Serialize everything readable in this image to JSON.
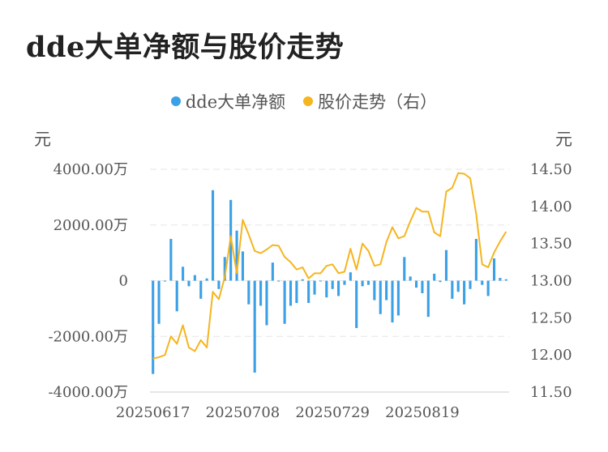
{
  "title": "dde大单净额与股价走势",
  "legend": {
    "bar_label": "dde大单净额",
    "line_label": "股价走势（右）"
  },
  "units": {
    "left": "元",
    "right": "元"
  },
  "colors": {
    "bar": "#3ba0e6",
    "line": "#f5b51e",
    "grid": "#e6e6e6",
    "axis": "#cccccc"
  },
  "chart_data": {
    "type": "bar+line",
    "title": "dde大单净额与股价走势",
    "grid": true,
    "legend_position": "top",
    "x_tick_labels": [
      "20250617",
      "20250708",
      "20250729",
      "20250819"
    ],
    "left_axis": {
      "ylim": [
        -4000,
        4000
      ],
      "tick_labels": [
        "4000.00万",
        "2000.00万",
        "0",
        "-2000.00万",
        "-4000.00万"
      ],
      "ticks": [
        4000,
        2000,
        0,
        -2000,
        -4000
      ]
    },
    "right_axis": {
      "ylim": [
        11.5,
        14.5
      ],
      "tick_labels": [
        "14.50",
        "14.00",
        "13.50",
        "13.00",
        "12.50",
        "12.00",
        "11.50"
      ],
      "ticks": [
        14.5,
        14.0,
        13.5,
        13.0,
        12.5,
        12.0,
        11.5
      ]
    },
    "series": [
      {
        "name": "dde大单净额",
        "type": "bar",
        "axis": "left",
        "values": [
          -3350,
          -1550,
          0,
          1500,
          -1100,
          500,
          -200,
          200,
          -650,
          80,
          3250,
          -300,
          850,
          2900,
          1800,
          1050,
          -850,
          -3300,
          -900,
          -1600,
          650,
          -30,
          -1550,
          -900,
          -800,
          50,
          -800,
          -500,
          0,
          -600,
          -300,
          -550,
          -150,
          300,
          -1700,
          -200,
          -150,
          -700,
          -1200,
          -700,
          -1500,
          -1250,
          850,
          150,
          -250,
          -450,
          -1300,
          250,
          -50,
          1100,
          -650,
          -400,
          -850,
          -300,
          1500,
          -150,
          -550,
          800,
          100,
          50
        ]
      },
      {
        "name": "股价走势（右）",
        "type": "line",
        "axis": "right",
        "values": [
          11.95,
          11.97,
          12.0,
          12.25,
          12.15,
          12.4,
          12.1,
          12.05,
          12.2,
          12.1,
          12.85,
          12.75,
          13.05,
          13.6,
          13.1,
          13.82,
          13.62,
          13.4,
          13.37,
          13.42,
          13.48,
          13.47,
          13.32,
          13.25,
          13.15,
          13.18,
          13.03,
          13.1,
          13.1,
          13.2,
          13.22,
          13.1,
          13.12,
          13.43,
          13.15,
          13.5,
          13.4,
          13.2,
          13.22,
          13.52,
          13.72,
          13.57,
          13.6,
          13.8,
          13.98,
          13.93,
          13.93,
          13.65,
          13.6,
          14.2,
          14.25,
          14.45,
          14.44,
          14.38,
          13.9,
          13.22,
          13.18,
          13.38,
          13.53,
          13.66
        ]
      }
    ]
  }
}
